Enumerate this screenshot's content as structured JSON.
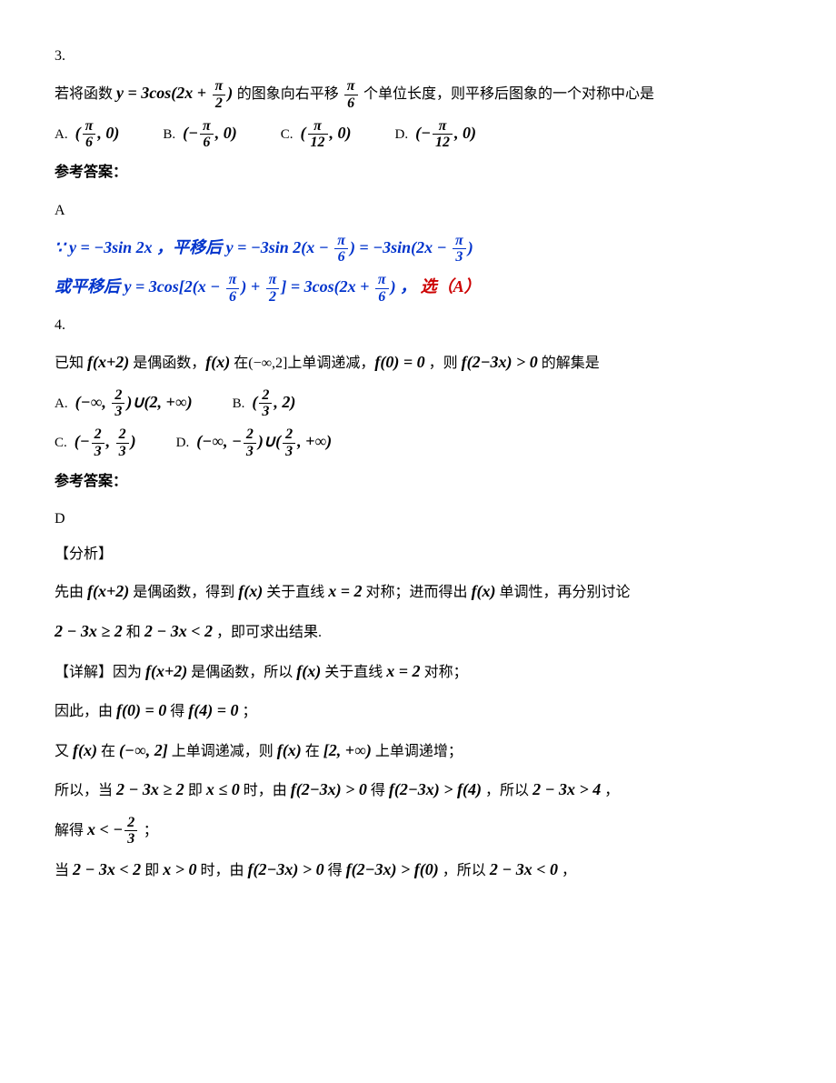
{
  "q3": {
    "number": "3.",
    "text1": "若将函数 ",
    "formula1_pre": "y = 3cos(2x + ",
    "formula1_frac_num": "π",
    "formula1_frac_den": "2",
    "formula1_post": ")",
    "text2": " 的图象向右平移 ",
    "formula2_num": "π",
    "formula2_den": "6",
    "text3": " 个单位长度，则平移后图象的一个对称中心是",
    "options": {
      "A": {
        "label": "A.",
        "pre": "(",
        "num": "π",
        "den": "6",
        "mid": ", 0)"
      },
      "B": {
        "label": "B.",
        "pre": "(−",
        "num": "π",
        "den": "6",
        "mid": ", 0)"
      },
      "C": {
        "label": "C.",
        "pre": "(",
        "num": "π",
        "den": "12",
        "mid": ", 0)"
      },
      "D": {
        "label": "D.",
        "pre": "(−",
        "num": "π",
        "den": "12",
        "mid": ", 0)"
      }
    },
    "answer_label": "参考答案：",
    "answer": "A",
    "sol_line1_a": "∵ y = −3sin 2x ，平移后   ",
    "sol_line1_b": "y = −3sin 2(x − ",
    "sol_line1_f1n": "π",
    "sol_line1_f1d": "6",
    "sol_line1_c": ") = −3sin(2x − ",
    "sol_line1_f2n": "π",
    "sol_line1_f2d": "3",
    "sol_line1_d": ")",
    "sol_line2_a": "或平移后  ",
    "sol_line2_b": "y = 3cos[2(x − ",
    "sol_line2_f1n": "π",
    "sol_line2_f1d": "6",
    "sol_line2_c": ") + ",
    "sol_line2_f2n": "π",
    "sol_line2_f2d": "2",
    "sol_line2_d": "] = 3cos(2x + ",
    "sol_line2_f3n": "π",
    "sol_line2_f3d": "6",
    "sol_line2_e": ") ，",
    "sol_line2_red": " 选（A）"
  },
  "q4": {
    "number": "4.",
    "text1": "已知 ",
    "f1": "f(x+2)",
    "text2": " 是偶函数，",
    "f2": "f(x)",
    "text3": " 在(−∞,2]上单调递减，",
    "f3": "f(0) = 0",
    "text4": " ，则 ",
    "f4": "f(2−3x) > 0",
    "text5": " 的解集是",
    "options": {
      "A": {
        "label": "A.",
        "pre": "(−∞, ",
        "n1": "2",
        "d1": "3",
        "mid": ")∪(2, +∞)"
      },
      "B": {
        "label": "B.",
        "pre": "(",
        "n1": "2",
        "d1": "3",
        "mid": ", 2)"
      },
      "C": {
        "label": "C.",
        "pre": "(−",
        "n1": "2",
        "d1": "3",
        "mid": ", ",
        "n2": "2",
        "d2": "3",
        "post": ")"
      },
      "D": {
        "label": "D.",
        "pre": "(−∞, −",
        "n1": "2",
        "d1": "3",
        "mid": ")∪(",
        "n2": "2",
        "d2": "3",
        "post": ", +∞)"
      }
    },
    "answer_label": "参考答案：",
    "answer": "D",
    "analysis_label": "【分析】",
    "analysis_l1a": "先由 ",
    "analysis_f1": "f(x+2)",
    "analysis_l1b": " 是偶函数，得到 ",
    "analysis_f2": "f(x)",
    "analysis_l1c": " 关于直线 ",
    "analysis_f3": "x = 2",
    "analysis_l1d": " 对称；进而得出 ",
    "analysis_f4": "f(x)",
    "analysis_l1e": " 单调性，再分别讨论 ",
    "analysis_l2a": "",
    "analysis_f5": "2 − 3x ≥ 2",
    "analysis_l2b": " 和 ",
    "analysis_f6": "2 − 3x < 2",
    "analysis_l2c": " ，即可求出结果.",
    "detail_label": "【详解】",
    "d_l1a": "因为 ",
    "d_f1": "f(x+2)",
    "d_l1b": " 是偶函数，所以 ",
    "d_f2": "f(x)",
    "d_l1c": " 关于直线 ",
    "d_f3": "x = 2",
    "d_l1d": " 对称；",
    "d_l2a": "因此，由 ",
    "d_f4": "f(0) = 0",
    "d_l2b": " 得 ",
    "d_f5": "f(4) = 0",
    "d_l2c": " ；",
    "d_l3a": "又 ",
    "d_f6": "f(x)",
    "d_l3b": " 在 ",
    "d_f7": "(−∞, 2]",
    "d_l3c": " 上单调递减，则 ",
    "d_f8": "f(x)",
    "d_l3d": " 在 ",
    "d_f9": "[2, +∞)",
    "d_l3e": " 上单调递增；",
    "d_l4a": "所以，当 ",
    "d_f10": "2 − 3x ≥ 2",
    "d_l4b": " 即 ",
    "d_f11": "x ≤ 0",
    "d_l4c": " 时，由 ",
    "d_f12": "f(2−3x) > 0",
    "d_l4d": " 得 ",
    "d_f13": "f(2−3x) > f(4)",
    "d_l4e": " ，所以 ",
    "d_f14": "2 − 3x > 4",
    "d_l4f": " ，",
    "d_l5a": "解得 ",
    "d_f15a": "x < −",
    "d_f15n": "2",
    "d_f15d": "3",
    "d_l5b": " ；",
    "d_l6a": "当 ",
    "d_f16": "2 − 3x < 2",
    "d_l6b": " 即 ",
    "d_f17": "x > 0",
    "d_l6c": " 时，由 ",
    "d_f18": "f(2−3x) > 0",
    "d_l6d": " 得 ",
    "d_f19": "f(2−3x) > f(0)",
    "d_l6e": " ，所以 ",
    "d_f20": "2 − 3x < 0",
    "d_l6f": " ，"
  }
}
